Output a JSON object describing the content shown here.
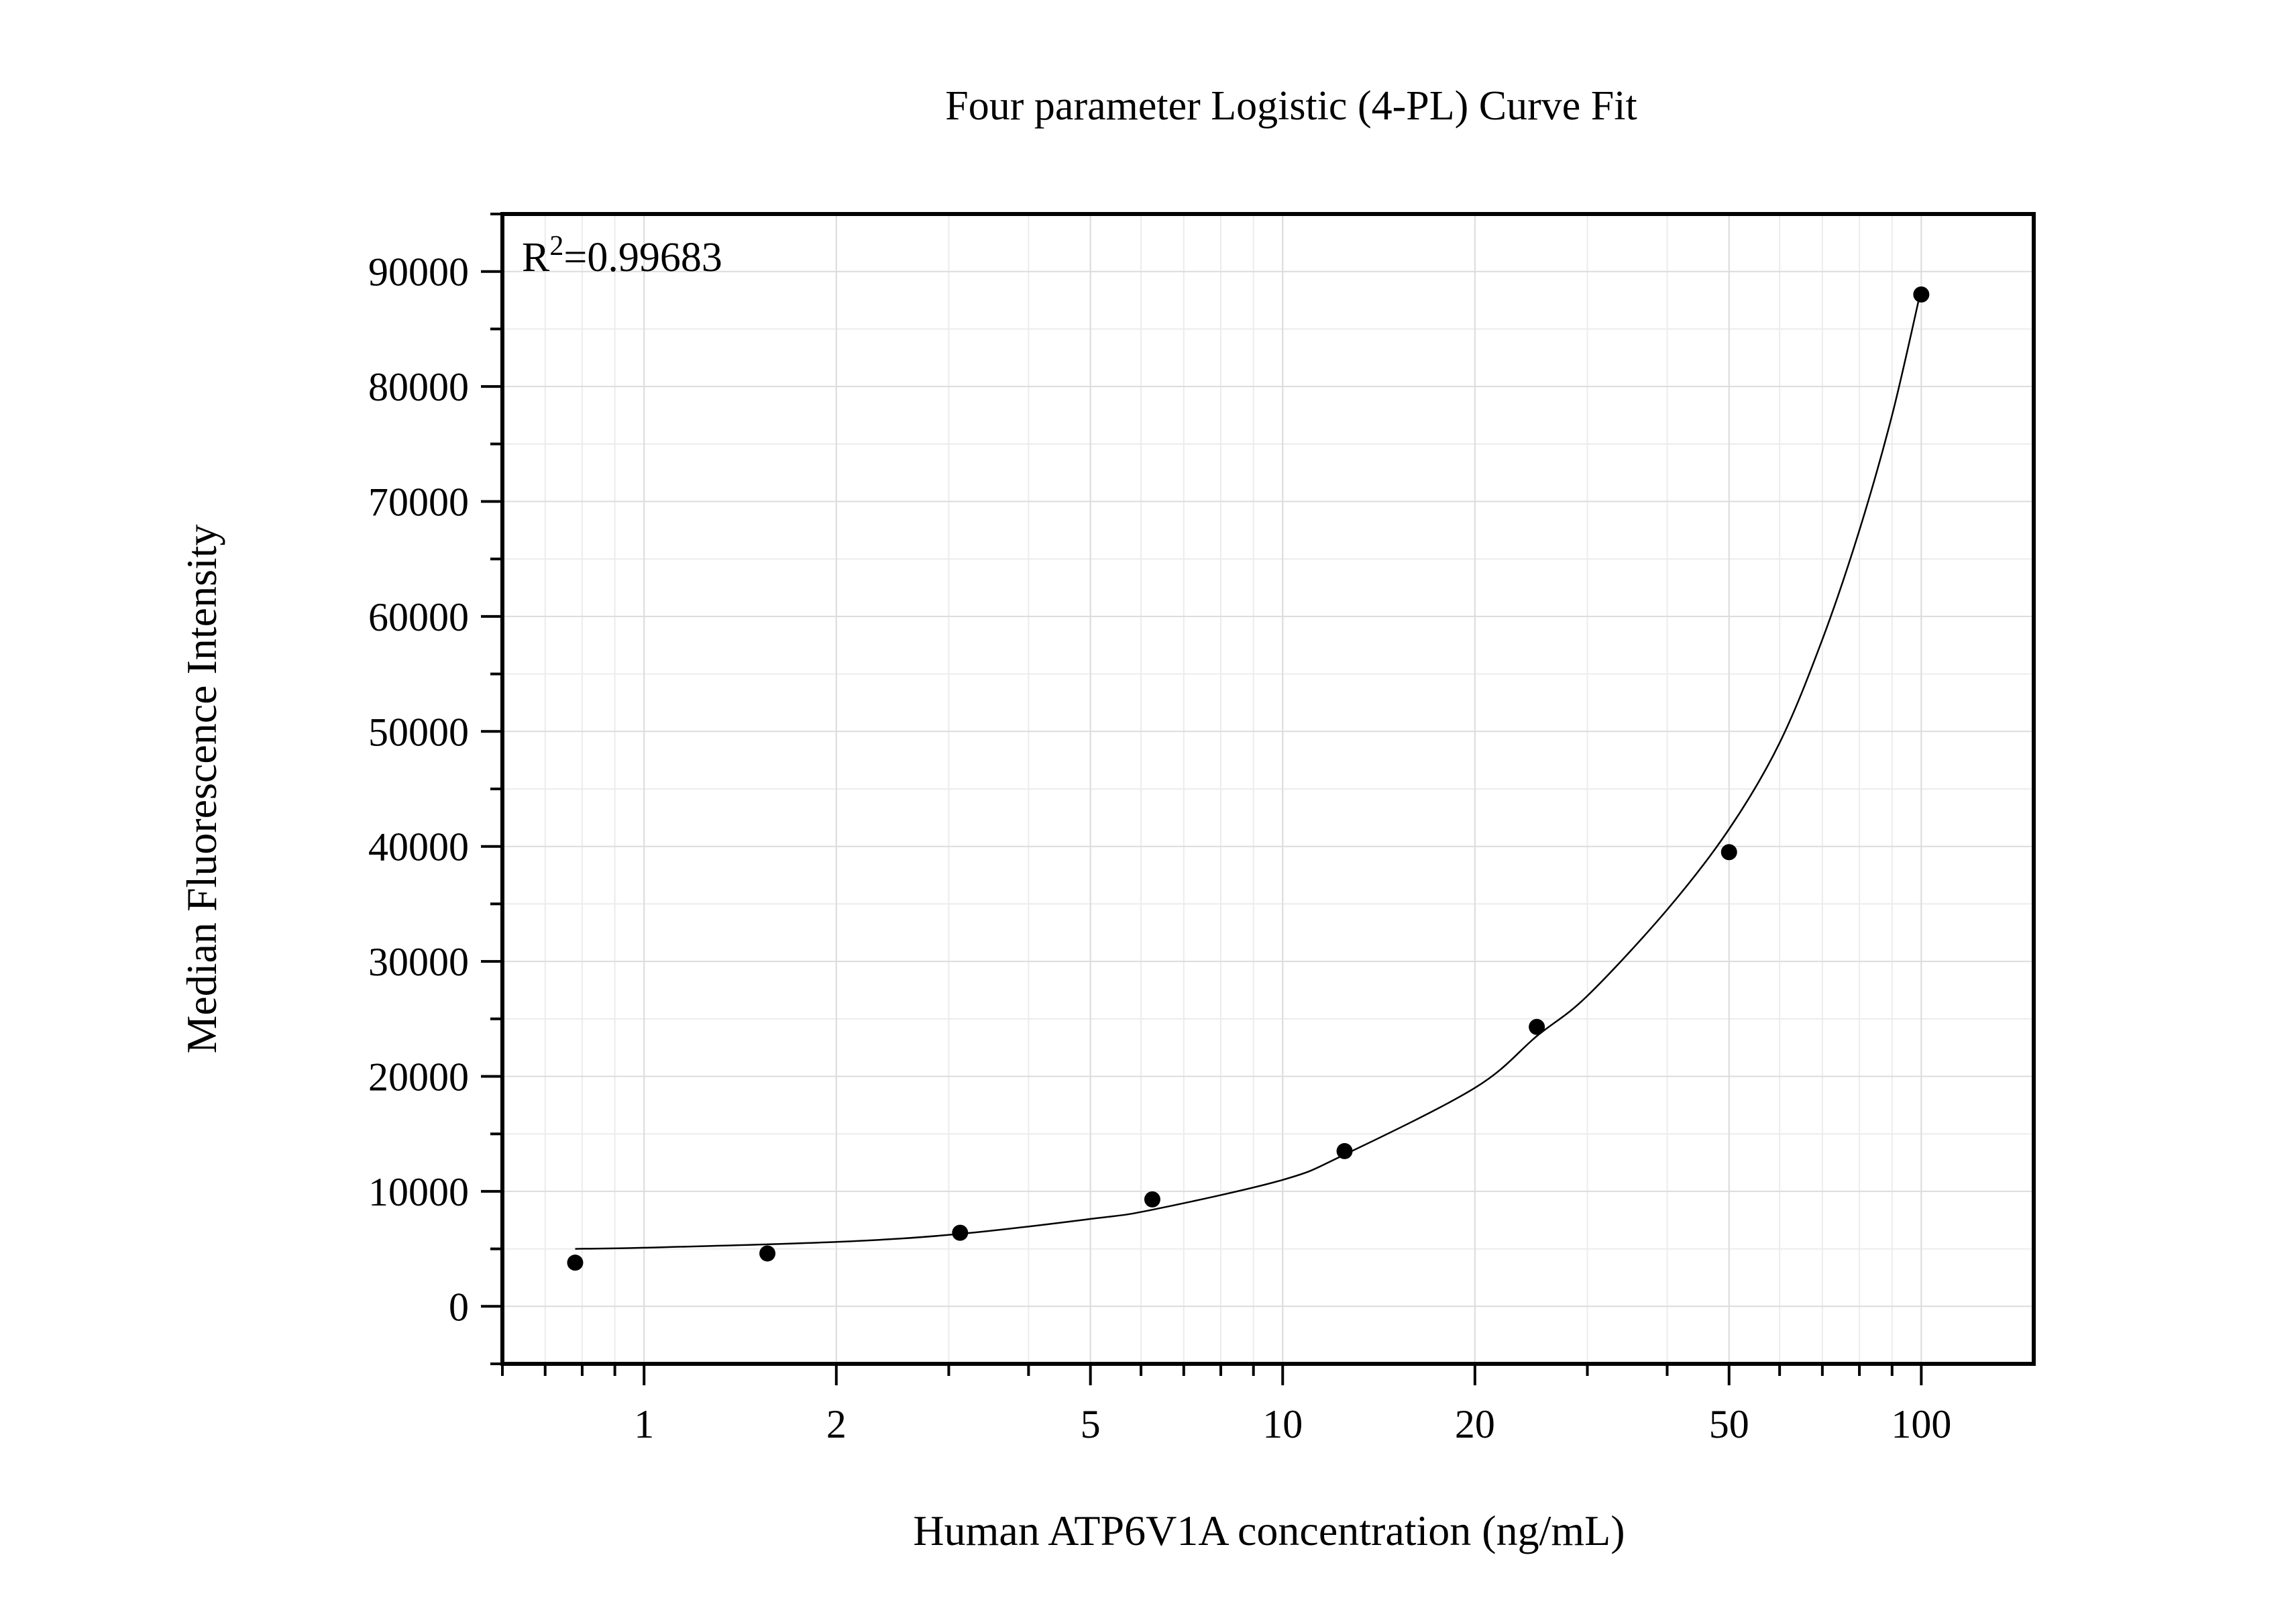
{
  "chart_data": {
    "type": "scatter",
    "title": "Four parameter Logistic (4-PL) Curve Fit",
    "xlabel": "Human ATP6V1A concentration (ng/mL)",
    "ylabel": "Median Fluorescence Intensity",
    "x_scale": "log",
    "xlim": [
      0.6,
      150
    ],
    "ylim": [
      -5000,
      95000
    ],
    "x_ticks": [
      1,
      2,
      5,
      10,
      20,
      50,
      100
    ],
    "y_ticks": [
      0,
      10000,
      20000,
      30000,
      40000,
      50000,
      60000,
      70000,
      80000,
      90000
    ],
    "grid": true,
    "annotation": {
      "label": "R",
      "superscript": "2",
      "value": "=0.99683"
    },
    "series": [
      {
        "points": [
          {
            "x": 0.78,
            "y": 3800
          },
          {
            "x": 1.56,
            "y": 4600
          },
          {
            "x": 3.125,
            "y": 6400
          },
          {
            "x": 6.25,
            "y": 9300
          },
          {
            "x": 12.5,
            "y": 13500
          },
          {
            "x": 25,
            "y": 24300
          },
          {
            "x": 50,
            "y": 39500
          },
          {
            "x": 100,
            "y": 88000
          }
        ]
      }
    ],
    "fit_curve": {
      "model": "4PL",
      "x_range": [
        0.78,
        100
      ],
      "samples": [
        {
          "x": 0.78,
          "y": 5000
        },
        {
          "x": 1,
          "y": 5100
        },
        {
          "x": 2,
          "y": 5600
        },
        {
          "x": 3.125,
          "y": 6300
        },
        {
          "x": 5,
          "y": 7600
        },
        {
          "x": 6.25,
          "y": 8400
        },
        {
          "x": 10,
          "y": 11000
        },
        {
          "x": 12.5,
          "y": 13200
        },
        {
          "x": 20,
          "y": 19000
        },
        {
          "x": 25,
          "y": 23500
        },
        {
          "x": 30,
          "y": 27000
        },
        {
          "x": 40,
          "y": 34500
        },
        {
          "x": 50,
          "y": 41500
        },
        {
          "x": 60,
          "y": 49000
        },
        {
          "x": 70,
          "y": 58000
        },
        {
          "x": 80,
          "y": 67500
        },
        {
          "x": 90,
          "y": 77500
        },
        {
          "x": 100,
          "y": 88500
        }
      ]
    }
  }
}
